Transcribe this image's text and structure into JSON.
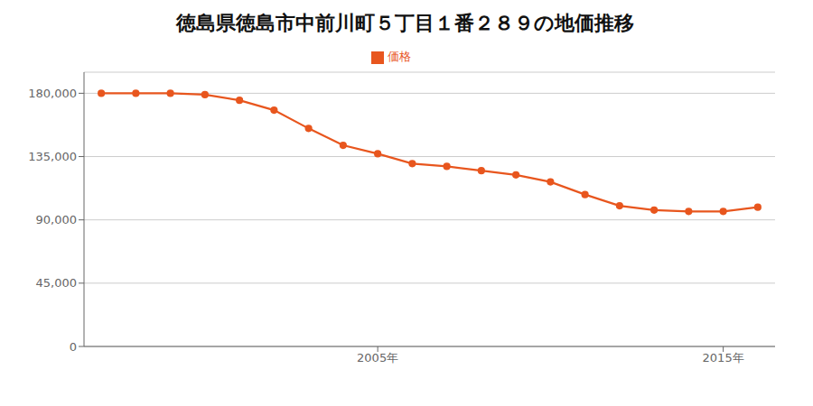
{
  "chart_data": {
    "type": "line",
    "title": "徳島県徳島市中前川町５丁目１番２８９の地価推移",
    "x": [
      1997,
      1998,
      1999,
      2000,
      2001,
      2002,
      2003,
      2004,
      2005,
      2006,
      2007,
      2008,
      2009,
      2010,
      2011,
      2012,
      2013,
      2014,
      2015,
      2016
    ],
    "series": [
      {
        "name": "価格",
        "color": "#e8561e",
        "marker": "circle",
        "values": [
          180000,
          180000,
          180000,
          179000,
          175000,
          168000,
          155000,
          143000,
          137000,
          130000,
          128000,
          125000,
          122000,
          117000,
          108000,
          100000,
          97000,
          96000,
          96000,
          99000
        ]
      }
    ],
    "xlim": [
      1996.5,
      2016.5
    ],
    "xticks": [
      {
        "value": 2005,
        "label": "2005年"
      },
      {
        "value": 2015,
        "label": "2015年"
      }
    ],
    "ylim": [
      0,
      195000
    ],
    "yticks": [
      0,
      {
        "value": 45000,
        "label": "45,000"
      },
      {
        "value": 90000,
        "label": "90,000"
      },
      {
        "value": 135000,
        "label": "135,000"
      },
      {
        "value": 180000,
        "label": "180,000"
      }
    ],
    "grid": "y",
    "legend": "top"
  }
}
